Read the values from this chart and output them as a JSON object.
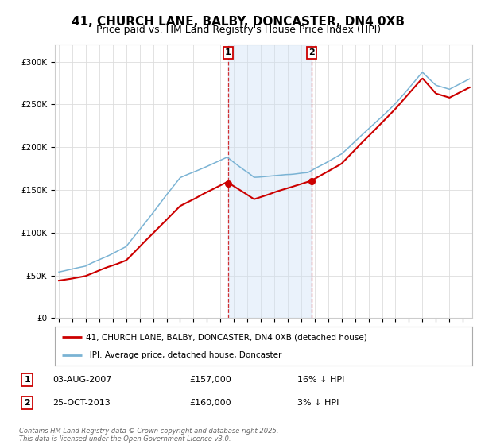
{
  "title": "41, CHURCH LANE, BALBY, DONCASTER, DN4 0XB",
  "subtitle": "Price paid vs. HM Land Registry's House Price Index (HPI)",
  "ylim": [
    0,
    320000
  ],
  "yticks": [
    0,
    50000,
    100000,
    150000,
    200000,
    250000,
    300000
  ],
  "ytick_labels": [
    "£0",
    "£50K",
    "£100K",
    "£150K",
    "£200K",
    "£250K",
    "£300K"
  ],
  "hpi_color": "#7ab3d4",
  "price_color": "#cc0000",
  "sale1_price": 157000,
  "sale2_price": 160000,
  "sale1_t": 2007.583,
  "sale2_t": 2013.75,
  "sale1_date": "03-AUG-2007",
  "sale2_date": "25-OCT-2013",
  "sale1_hpi_diff": "16% ↓ HPI",
  "sale2_hpi_diff": "3% ↓ HPI",
  "legend_label1": "41, CHURCH LANE, BALBY, DONCASTER, DN4 0XB (detached house)",
  "legend_label2": "HPI: Average price, detached house, Doncaster",
  "footer": "Contains HM Land Registry data © Crown copyright and database right 2025.\nThis data is licensed under the Open Government Licence v3.0.",
  "background_color": "#ffffff",
  "plot_bg_color": "#ffffff",
  "shade_color": "#cce0f5",
  "grid_color": "#dddddd",
  "title_fontsize": 11,
  "subtitle_fontsize": 9,
  "tick_fontsize": 7.5
}
